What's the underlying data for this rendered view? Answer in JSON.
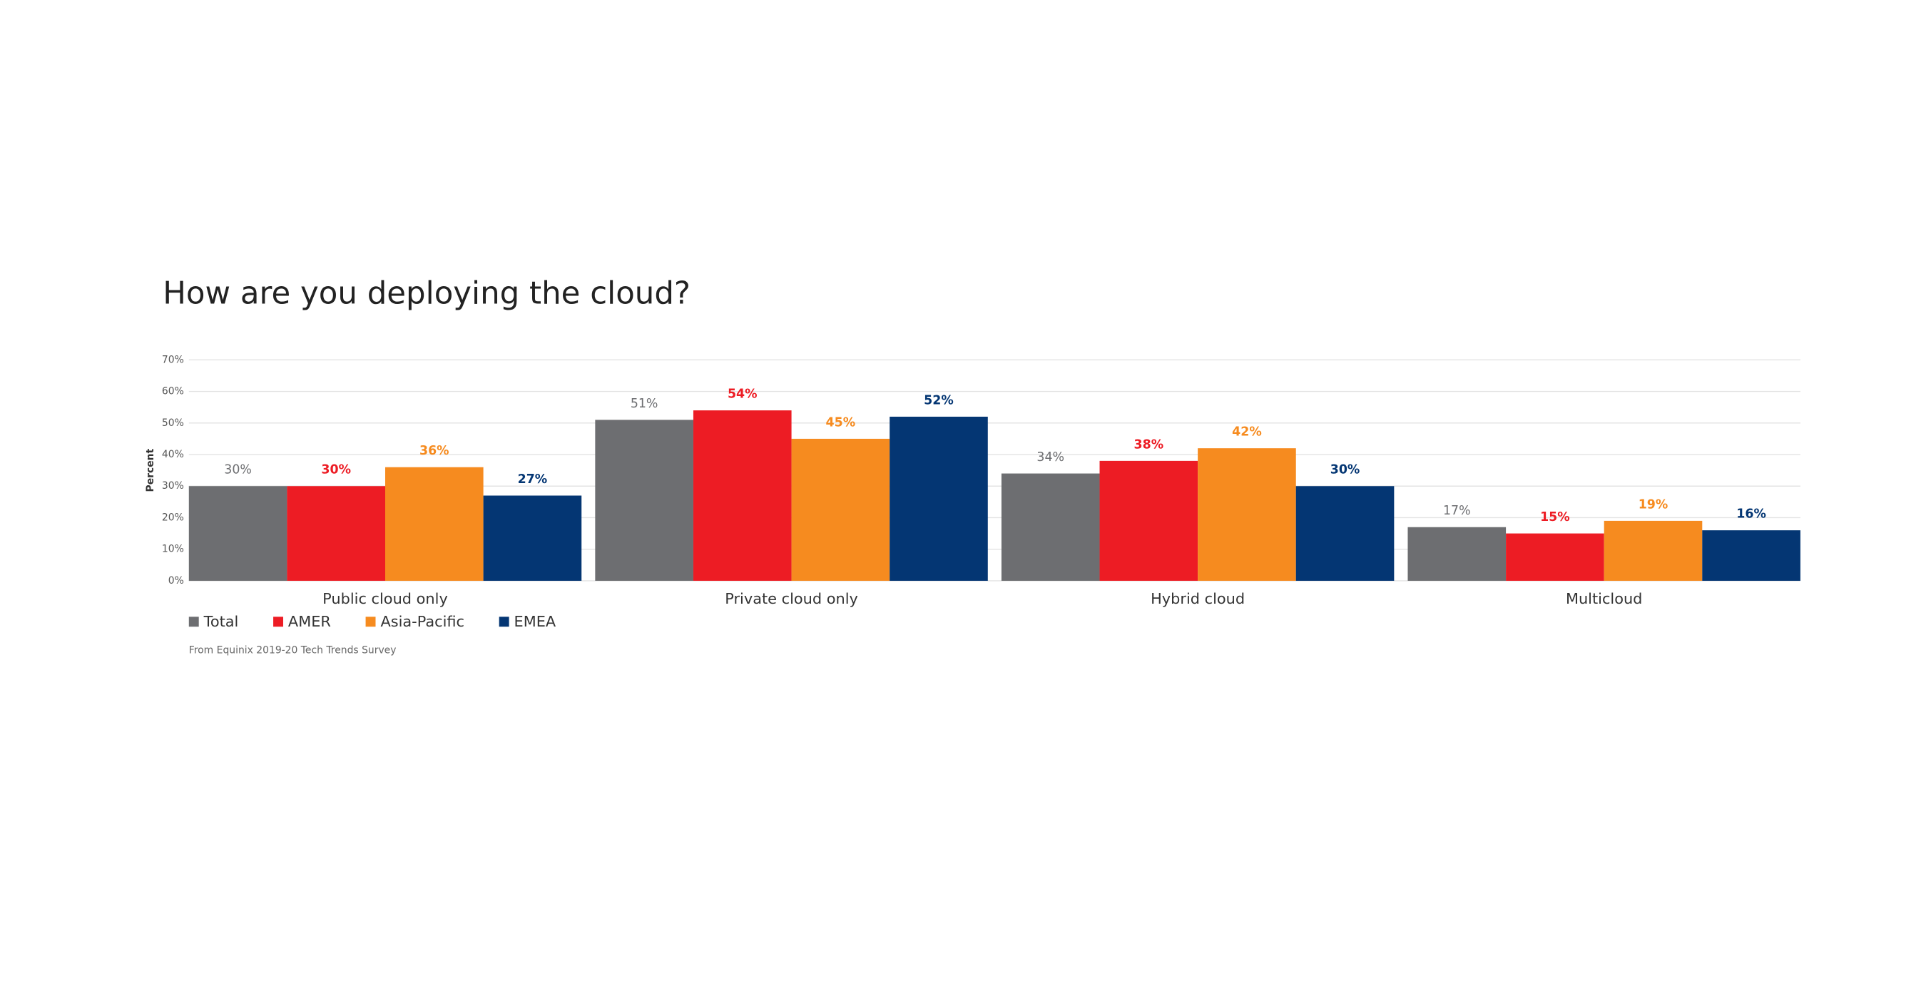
{
  "chart_data": {
    "type": "bar",
    "title": "How are you deploying the cloud?",
    "y_label": "Percent",
    "note": "From Equinix 2019-20 Tech Trends Survey",
    "categories": [
      "Public cloud only",
      "Private cloud only",
      "Hybrid cloud",
      "Multicloud"
    ],
    "series": [
      {
        "name": "Total",
        "color": "#6d6e71",
        "values": [
          30,
          51,
          34,
          17
        ],
        "value_labels": [
          "30%",
          "51%",
          "34%",
          "17%"
        ]
      },
      {
        "name": "AMER",
        "color": "#ed1c24",
        "values": [
          30,
          54,
          38,
          15
        ],
        "value_labels": [
          "30%",
          "54%",
          "38%",
          "15%"
        ]
      },
      {
        "name": "Asia-Pacific",
        "color": "#f68b1f",
        "values": [
          36,
          45,
          42,
          19
        ],
        "value_labels": [
          "36%",
          "45%",
          "42%",
          "19%"
        ]
      },
      {
        "name": "EMEA",
        "color": "#043673",
        "values": [
          27,
          52,
          30,
          16
        ],
        "value_labels": [
          "27%",
          "52%",
          "30%",
          "16%"
        ]
      }
    ],
    "ylim": [
      0,
      70
    ],
    "yticks": [
      {
        "value": 0,
        "label": "0%"
      },
      {
        "value": 10,
        "label": "10%"
      },
      {
        "value": 20,
        "label": "20%"
      },
      {
        "value": 30,
        "label": "30%"
      },
      {
        "value": 40,
        "label": "40%"
      },
      {
        "value": 50,
        "label": "50%"
      },
      {
        "value": 60,
        "label": "60%"
      },
      {
        "value": 70,
        "label": "70%"
      }
    ],
    "grid": true,
    "legend": "bottom-left"
  }
}
